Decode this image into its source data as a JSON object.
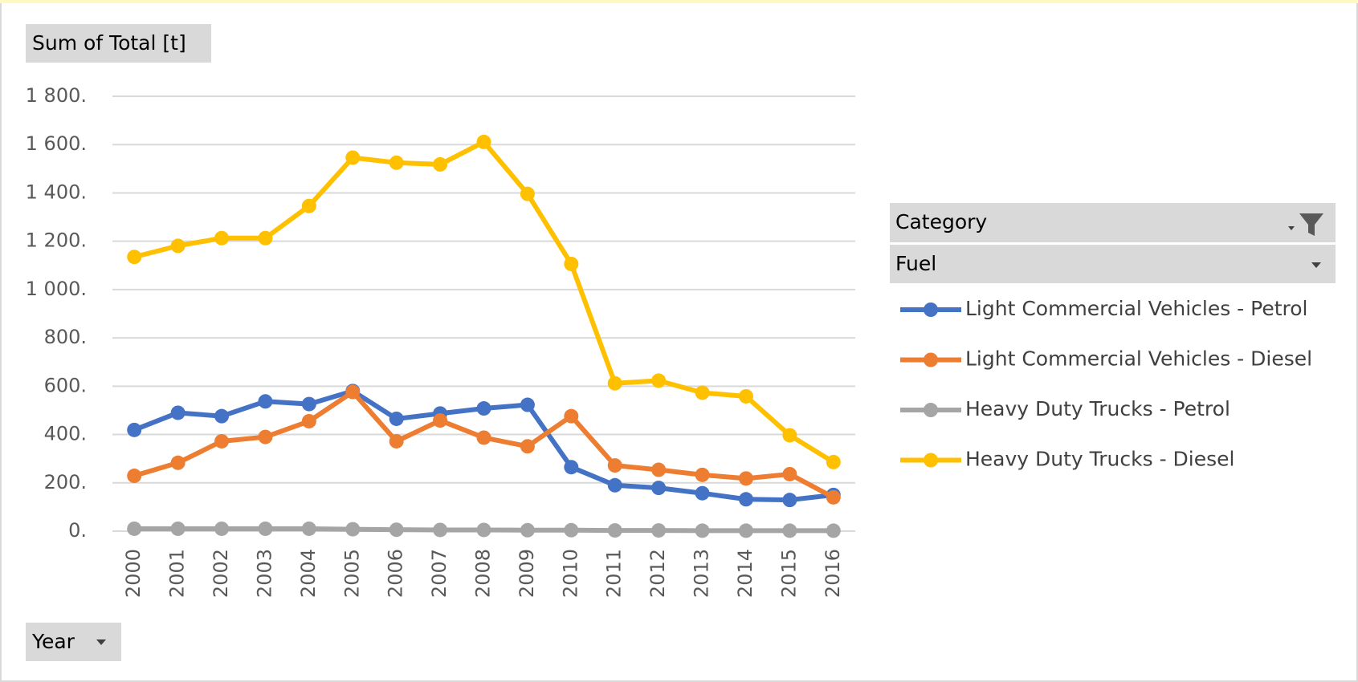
{
  "chart_data": {
    "type": "line",
    "value_field": "Sum of Total [t]",
    "axis_field": "Year",
    "legend_field": "Category",
    "legend_subfield": "Fuel",
    "categories": [
      "2000",
      "2001",
      "2002",
      "2003",
      "2004",
      "2005",
      "2006",
      "2007",
      "2008",
      "2009",
      "2010",
      "2011",
      "2012",
      "2013",
      "2014",
      "2015",
      "2016"
    ],
    "series": [
      {
        "name": "Light Commercial Vehicles - Petrol",
        "color": "#4472c4",
        "values": [
          419,
          490,
          476,
          537,
          526,
          580,
          465,
          487,
          508,
          523,
          265,
          190,
          179,
          157,
          132,
          129,
          150
        ]
      },
      {
        "name": "Light Commercial Vehicles - Diesel",
        "color": "#ed7d31",
        "values": [
          229,
          283,
          372,
          390,
          455,
          576,
          372,
          458,
          387,
          351,
          476,
          272,
          254,
          233,
          218,
          236,
          140
        ]
      },
      {
        "name": "Heavy Duty Trucks - Petrol",
        "color": "#a5a5a5",
        "values": [
          10,
          10,
          10,
          10,
          10,
          8,
          6,
          5,
          5,
          4,
          4,
          3,
          3,
          2,
          2,
          2,
          2
        ]
      },
      {
        "name": "Heavy Duty Trucks - Diesel",
        "color": "#ffc000",
        "values": [
          1135,
          1181,
          1213,
          1213,
          1346,
          1546,
          1525,
          1518,
          1611,
          1396,
          1106,
          612,
          623,
          573,
          558,
          397,
          286
        ]
      }
    ],
    "ylim": [
      0,
      1800
    ],
    "yticks": [
      {
        "value": 0,
        "label": "0."
      },
      {
        "value": 200,
        "label": "200."
      },
      {
        "value": 400,
        "label": "400."
      },
      {
        "value": 600,
        "label": "600."
      },
      {
        "value": 800,
        "label": "800."
      },
      {
        "value": 1000,
        "label": "1 000."
      },
      {
        "value": 1200,
        "label": "1 200."
      },
      {
        "value": 1400,
        "label": "1 400."
      },
      {
        "value": 1600,
        "label": "1 600."
      },
      {
        "value": 1800,
        "label": "1 800."
      }
    ],
    "grid": true,
    "legend": "right"
  }
}
